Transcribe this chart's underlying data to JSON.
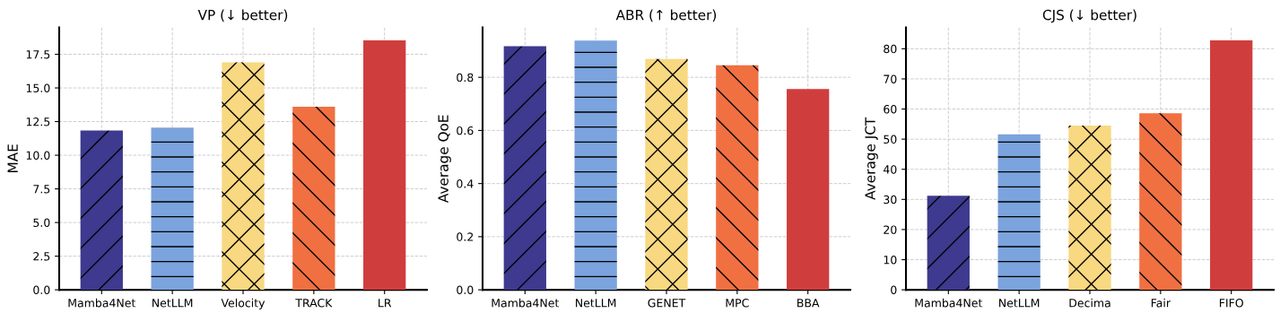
{
  "chart_data": [
    {
      "type": "bar",
      "title": "VP (↓ better)",
      "ylabel": "MAE",
      "categories": [
        "Mamba4Net",
        "NetLLM",
        "Velocity",
        "TRACK",
        "LR"
      ],
      "values": [
        11.84,
        12.04,
        16.9,
        13.6,
        18.53
      ],
      "colors": [
        "#3d3a8f",
        "#7ba3dd",
        "#f8d880",
        "#f07042",
        "#d03d3d"
      ],
      "ylim": [
        0,
        19.5
      ],
      "yticks": [
        {
          "value": 0,
          "label": "0.0"
        },
        2.5,
        {
          "value": 5,
          "label": "5.0"
        },
        7.5,
        {
          "value": 10,
          "label": "10.0"
        },
        12.5,
        {
          "value": 15,
          "label": "15.0"
        },
        17.5
      ],
      "grid": true
    },
    {
      "type": "bar",
      "title": "ABR (↑ better)",
      "ylabel": "Average QoE",
      "categories": [
        "Mamba4Net",
        "NetLLM",
        "GENET",
        "MPC",
        "BBA"
      ],
      "values": [
        0.917,
        0.938,
        0.869,
        0.845,
        0.756
      ],
      "colors": [
        "#3d3a8f",
        "#7ba3dd",
        "#f8d880",
        "#f07042",
        "#d03d3d"
      ],
      "ylim": [
        0,
        0.988
      ],
      "yticks": [
        {
          "value": 0,
          "label": "0.0"
        },
        0.2,
        0.4,
        0.6,
        0.8
      ],
      "grid": true
    },
    {
      "type": "bar",
      "title": "CJS (↓ better)",
      "ylabel": "Average JCT",
      "categories": [
        "Mamba4Net",
        "NetLLM",
        "Decima",
        "Fair",
        "FIFO"
      ],
      "values": [
        31.2,
        51.6,
        54.5,
        58.6,
        82.8
      ],
      "colors": [
        "#3d3a8f",
        "#7ba3dd",
        "#f8d880",
        "#f07042",
        "#d03d3d"
      ],
      "ylim": [
        0,
        87.1
      ],
      "yticks": [
        0,
        10,
        20,
        30,
        40,
        50,
        60,
        70,
        80
      ],
      "grid": true
    }
  ]
}
